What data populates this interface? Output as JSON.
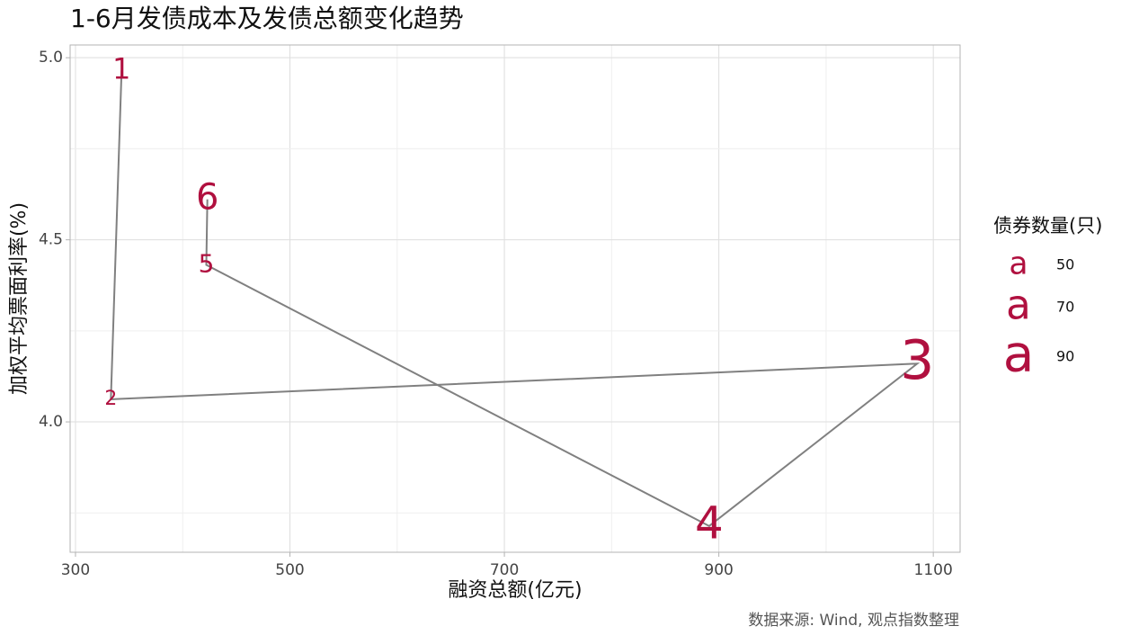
{
  "chart_data": {
    "type": "connected_scatter",
    "title": "1-6月发债成本及发债总额变化趋势",
    "x_label": "融资总额(亿元)",
    "y_label": "加权平均票面利率(%)",
    "caption": "数据来源: Wind, 观点指数整理",
    "labels": [
      "1",
      "2",
      "3",
      "4",
      "5",
      "6"
    ],
    "x": [
      343,
      333,
      1085,
      891,
      422,
      423
    ],
    "y": [
      4.965,
      4.062,
      4.16,
      3.714,
      4.431,
      4.611
    ],
    "sizes": [
      45,
      27,
      96,
      78,
      38,
      60
    ],
    "label_color": "#b0103f",
    "line_color": "#808080",
    "xlim": [
      295,
      1125
    ],
    "ylim": [
      3.642,
      5.035
    ],
    "xticks": [
      300,
      500,
      700,
      900,
      1100
    ],
    "yticks": [
      {
        "value": 4.0,
        "label": "4.0"
      },
      {
        "value": 4.5,
        "label": "4.5"
      },
      {
        "value": 5.0,
        "label": "5.0"
      }
    ],
    "grid": true,
    "size_legend": {
      "title": "债券数量(只)",
      "key_text": "a",
      "values": [
        50,
        70,
        90
      ]
    }
  }
}
